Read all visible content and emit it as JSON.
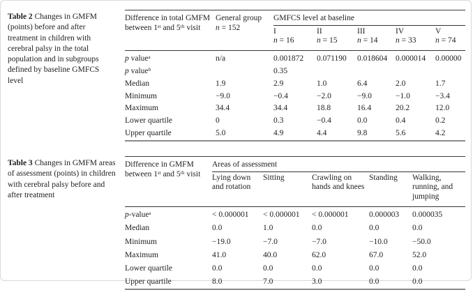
{
  "page": {
    "background": "#ffffff",
    "border_color": "#d9d9d9",
    "rule_dark": "#3a3a3a",
    "rule_bottom": "#8a8a8a"
  },
  "table2": {
    "caption": {
      "label": "Table 2",
      "text": "Changes in GMFM (points) before and after treatment in children with cerebral palsy in the total population and in subgroups defined by baseline GMFCS level"
    },
    "header": {
      "col1": "Difference in total GMFM between 1ˢᵗ and 5ᵗʰ visit",
      "col2_line1": "General group",
      "col2_line2": "n = 152",
      "span": "GMFCS level at baseline",
      "levels": [
        {
          "roman": "I",
          "n": "n = 16"
        },
        {
          "roman": "II",
          "n": "n = 15"
        },
        {
          "roman": "III",
          "n": "n = 14"
        },
        {
          "roman": "IV",
          "n": "n = 33"
        },
        {
          "roman": "V",
          "n": "n = 74"
        }
      ]
    },
    "rows": [
      {
        "label": "p valueᵃ",
        "values": [
          "n/a",
          "0.001872",
          "0.071190",
          "0.018604",
          "0.000014",
          "0.00000"
        ]
      },
      {
        "label": "p valueᵇ",
        "values": [
          "",
          "0.35",
          "",
          "",
          "",
          ""
        ]
      },
      {
        "label": "Median",
        "values": [
          "1.9",
          "2.9",
          "1.0",
          "6.4",
          "2.0",
          "1.7"
        ]
      },
      {
        "label": "Minimum",
        "values": [
          "−9.0",
          "−0.4",
          "−2.0",
          "−9.0",
          "−1.0",
          "−3.4"
        ]
      },
      {
        "label": "Maximum",
        "values": [
          "34.4",
          "34.4",
          "18.8",
          "16.4",
          "20.2",
          "12.0"
        ]
      },
      {
        "label": "Lower quartile",
        "values": [
          "0",
          "0.3",
          "−0.4",
          "0.0",
          "0.4",
          "0.2"
        ]
      },
      {
        "label": "Upper quartile",
        "values": [
          "5.0",
          "4.9",
          "4.4",
          "9.8",
          "5.6",
          "4.2"
        ]
      }
    ]
  },
  "table3": {
    "caption": {
      "label": "Table 3",
      "text": "Changes in GMFM areas of assessment (points) in children with cerebral palsy before and after treatment"
    },
    "header": {
      "col1": "Difference in GMFM between 1ˢᵗ and 5ᵗʰ visit",
      "span": "Areas of assessment",
      "areas": [
        "Lying down and rotation",
        "Sitting",
        "Crawling on hands and knees",
        "Standing",
        "Walking, running, and jumping"
      ]
    },
    "rows": [
      {
        "label": "p-valueᵃ",
        "values": [
          "< 0.000001",
          "< 0.000001",
          "< 0.000001",
          "0.000003",
          "0.000035"
        ]
      },
      {
        "label": "Median",
        "values": [
          "0.0",
          "1.0",
          "0.0",
          "0.0",
          "0.0"
        ]
      },
      {
        "label": "Minimum",
        "values": [
          "−19.0",
          "−7.0",
          "−7.0",
          "−10.0",
          "−50.0"
        ]
      },
      {
        "label": "Maximum",
        "values": [
          "41.0",
          "40.0",
          "62.0",
          "67.0",
          "52.0"
        ]
      },
      {
        "label": "Lower quartile",
        "values": [
          "0.0",
          "0.0",
          "0.0",
          "0.0",
          "0.0"
        ]
      },
      {
        "label": "Upper quartile",
        "values": [
          "8.0",
          "7.0",
          "3.0",
          "0.0",
          "0.0"
        ]
      }
    ]
  }
}
